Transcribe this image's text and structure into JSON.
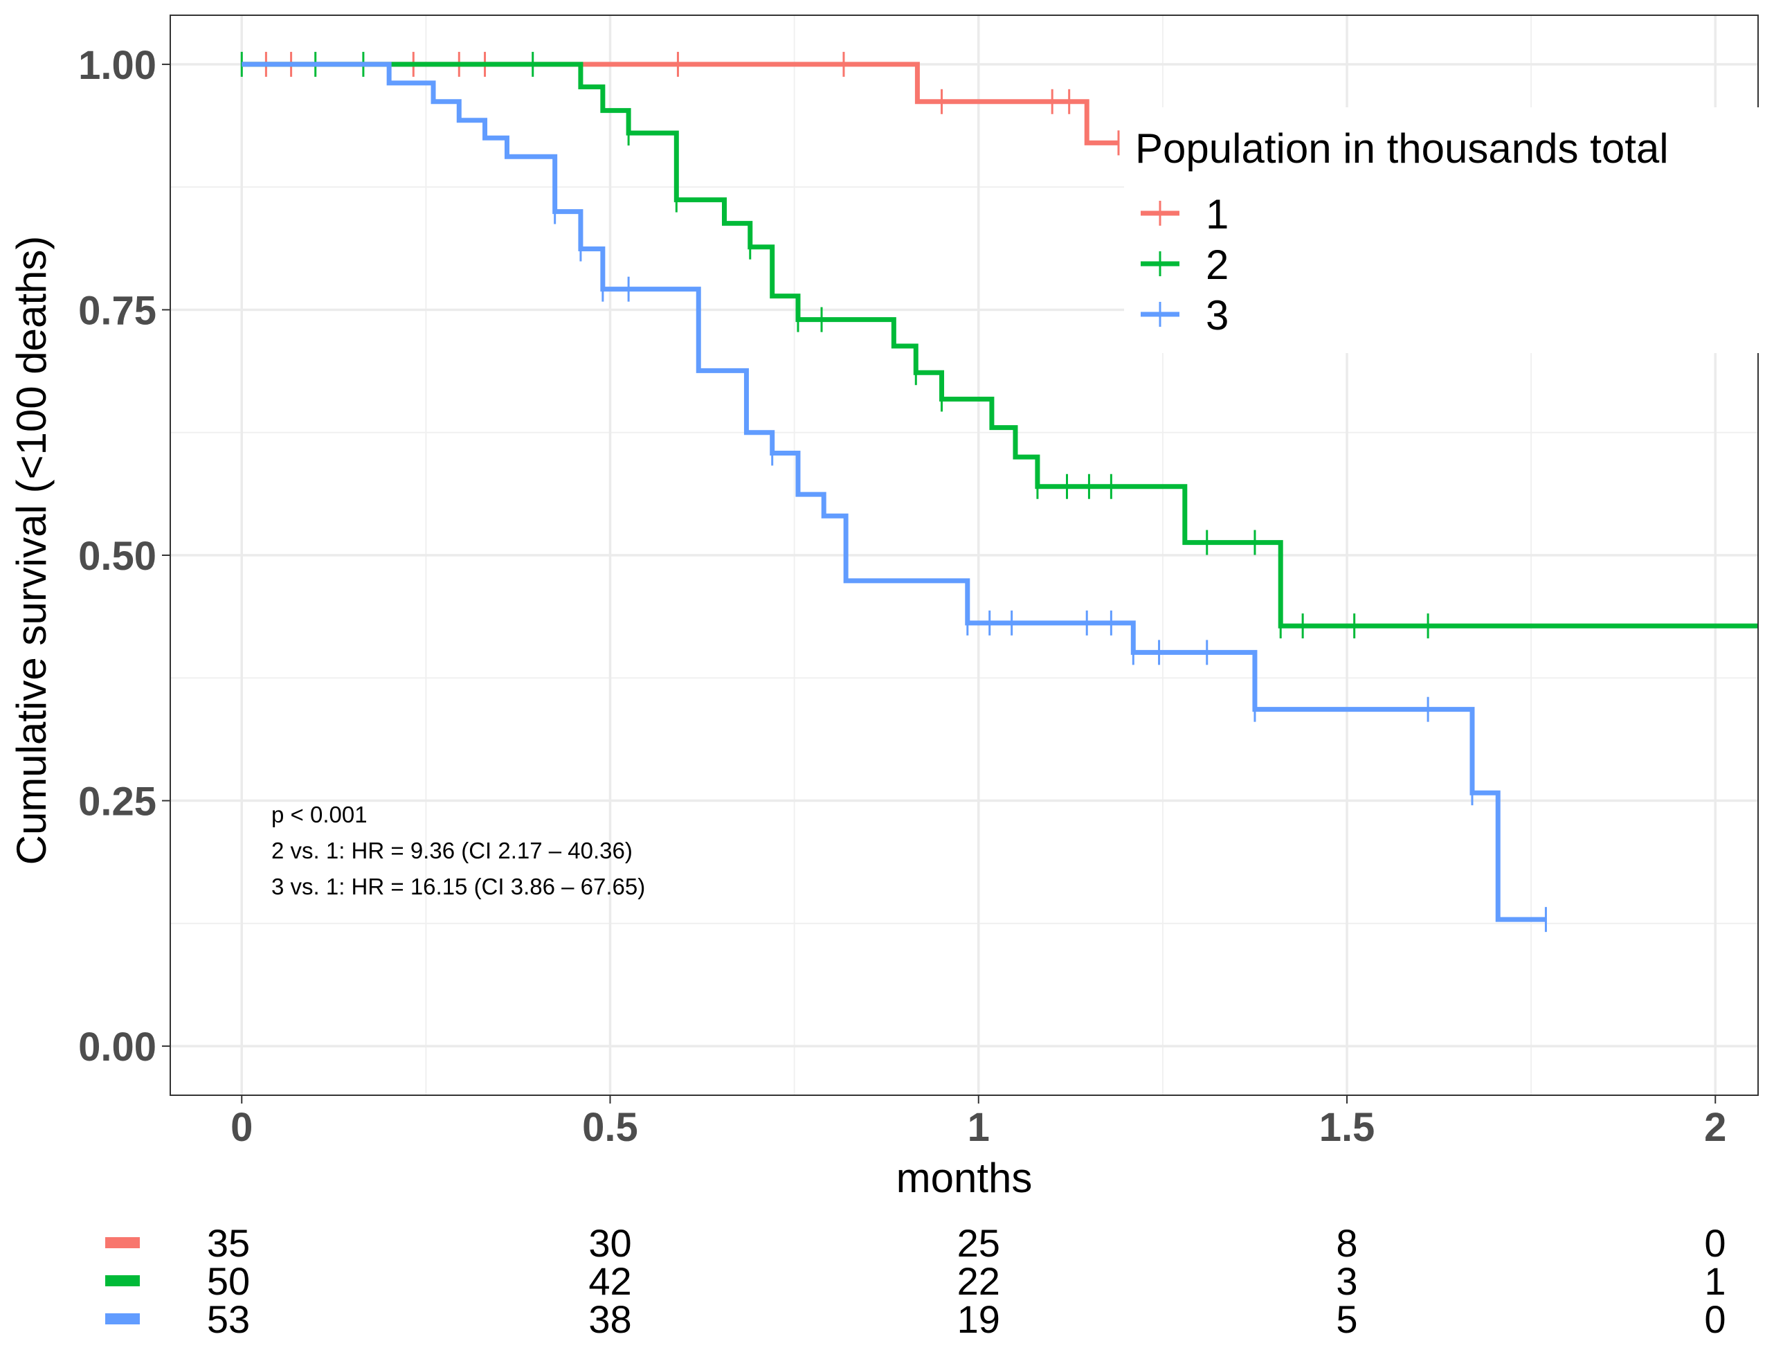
{
  "chart_data": {
    "type": "line",
    "subtype": "kaplan-meier step curves with censor ticks",
    "xlabel": "months",
    "ylabel": "Cumulative survival (<100 deaths)",
    "xlim": [
      -0.097,
      2.058
    ],
    "ylim": [
      -0.05,
      1.05
    ],
    "x_ticks": [
      0,
      0.5,
      1,
      1.5,
      2
    ],
    "x_tick_labels": [
      "0",
      "0.5",
      "1",
      "1.5",
      "2"
    ],
    "y_ticks": [
      0,
      0.25,
      0.5,
      0.75,
      1
    ],
    "y_tick_labels": [
      "0.00",
      "0.25",
      "0.50",
      "0.75",
      "1.00"
    ],
    "grid": true,
    "legend": {
      "title": "Population in thousands total",
      "placement": "top-right",
      "entries": [
        "1",
        "2",
        "3"
      ]
    },
    "annotations": [
      "p < 0.001",
      "2 vs. 1: HR = 9.36 (CI 2.17 – 40.36)",
      "3 vs. 1: HR = 16.15 (CI 3.86 – 67.65)"
    ],
    "series": [
      {
        "name": "1",
        "color": "#F8766D",
        "steps": [
          [
            0,
            1.0
          ],
          [
            0.917,
            0.962
          ],
          [
            1.147,
            0.92
          ],
          [
            1.19,
            0.92
          ]
        ],
        "censored": [
          [
            0.033,
            1.0
          ],
          [
            0.067,
            1.0
          ],
          [
            0.233,
            1.0
          ],
          [
            0.295,
            1.0
          ],
          [
            0.33,
            1.0
          ],
          [
            0.592,
            1.0
          ],
          [
            0.817,
            1.0
          ],
          [
            0.95,
            0.962
          ],
          [
            1.1,
            0.962
          ],
          [
            1.123,
            0.962
          ],
          [
            1.19,
            0.92
          ]
        ]
      },
      {
        "name": "2",
        "color": "#00BA38",
        "steps": [
          [
            0,
            1.0
          ],
          [
            0.46,
            0.977
          ],
          [
            0.49,
            0.953
          ],
          [
            0.525,
            0.93
          ],
          [
            0.59,
            0.862
          ],
          [
            0.655,
            0.838
          ],
          [
            0.69,
            0.814
          ],
          [
            0.72,
            0.764
          ],
          [
            0.755,
            0.74
          ],
          [
            0.885,
            0.713
          ],
          [
            0.915,
            0.686
          ],
          [
            0.95,
            0.659
          ],
          [
            1.018,
            0.63
          ],
          [
            1.05,
            0.6
          ],
          [
            1.08,
            0.57
          ],
          [
            1.28,
            0.513
          ],
          [
            1.41,
            0.428
          ],
          [
            2.058,
            0.428
          ]
        ],
        "censored": [
          [
            0.0,
            1.0
          ],
          [
            0.1,
            1.0
          ],
          [
            0.165,
            1.0
          ],
          [
            0.395,
            1.0
          ],
          [
            0.525,
            0.93
          ],
          [
            0.59,
            0.862
          ],
          [
            0.69,
            0.814
          ],
          [
            0.755,
            0.74
          ],
          [
            0.787,
            0.74
          ],
          [
            0.915,
            0.686
          ],
          [
            0.95,
            0.659
          ],
          [
            1.08,
            0.57
          ],
          [
            1.12,
            0.57
          ],
          [
            1.15,
            0.57
          ],
          [
            1.18,
            0.57
          ],
          [
            1.31,
            0.513
          ],
          [
            1.375,
            0.513
          ],
          [
            1.41,
            0.428
          ],
          [
            1.44,
            0.428
          ],
          [
            1.51,
            0.428
          ],
          [
            1.61,
            0.428
          ]
        ]
      },
      {
        "name": "3",
        "color": "#619CFF",
        "steps": [
          [
            0,
            1.0
          ],
          [
            0.2,
            0.981
          ],
          [
            0.26,
            0.962
          ],
          [
            0.295,
            0.943
          ],
          [
            0.33,
            0.925
          ],
          [
            0.36,
            0.906
          ],
          [
            0.425,
            0.85
          ],
          [
            0.46,
            0.812
          ],
          [
            0.49,
            0.771
          ],
          [
            0.62,
            0.688
          ],
          [
            0.685,
            0.625
          ],
          [
            0.72,
            0.604
          ],
          [
            0.755,
            0.562
          ],
          [
            0.79,
            0.54
          ],
          [
            0.82,
            0.474
          ],
          [
            0.985,
            0.431
          ],
          [
            1.21,
            0.401
          ],
          [
            1.375,
            0.343
          ],
          [
            1.67,
            0.258
          ],
          [
            1.705,
            0.129
          ],
          [
            1.77,
            0.129
          ]
        ],
        "censored": [
          [
            0.425,
            0.85
          ],
          [
            0.46,
            0.812
          ],
          [
            0.49,
            0.771
          ],
          [
            0.525,
            0.771
          ],
          [
            0.72,
            0.604
          ],
          [
            0.985,
            0.431
          ],
          [
            1.015,
            0.431
          ],
          [
            1.045,
            0.431
          ],
          [
            1.147,
            0.431
          ],
          [
            1.18,
            0.431
          ],
          [
            1.21,
            0.401
          ],
          [
            1.245,
            0.401
          ],
          [
            1.31,
            0.401
          ],
          [
            1.375,
            0.343
          ],
          [
            1.61,
            0.343
          ],
          [
            1.67,
            0.258
          ],
          [
            1.77,
            0.129
          ]
        ]
      }
    ]
  },
  "risk_table": {
    "times": [
      0,
      0.5,
      1,
      1.5,
      2
    ],
    "rows": [
      {
        "color": "#F8766D",
        "counts": [
          "35",
          "30",
          "25",
          "8",
          "0"
        ]
      },
      {
        "color": "#00BA38",
        "counts": [
          "50",
          "42",
          "22",
          "3",
          "1"
        ]
      },
      {
        "color": "#619CFF",
        "counts": [
          "53",
          "38",
          "19",
          "5",
          "0"
        ]
      }
    ]
  }
}
